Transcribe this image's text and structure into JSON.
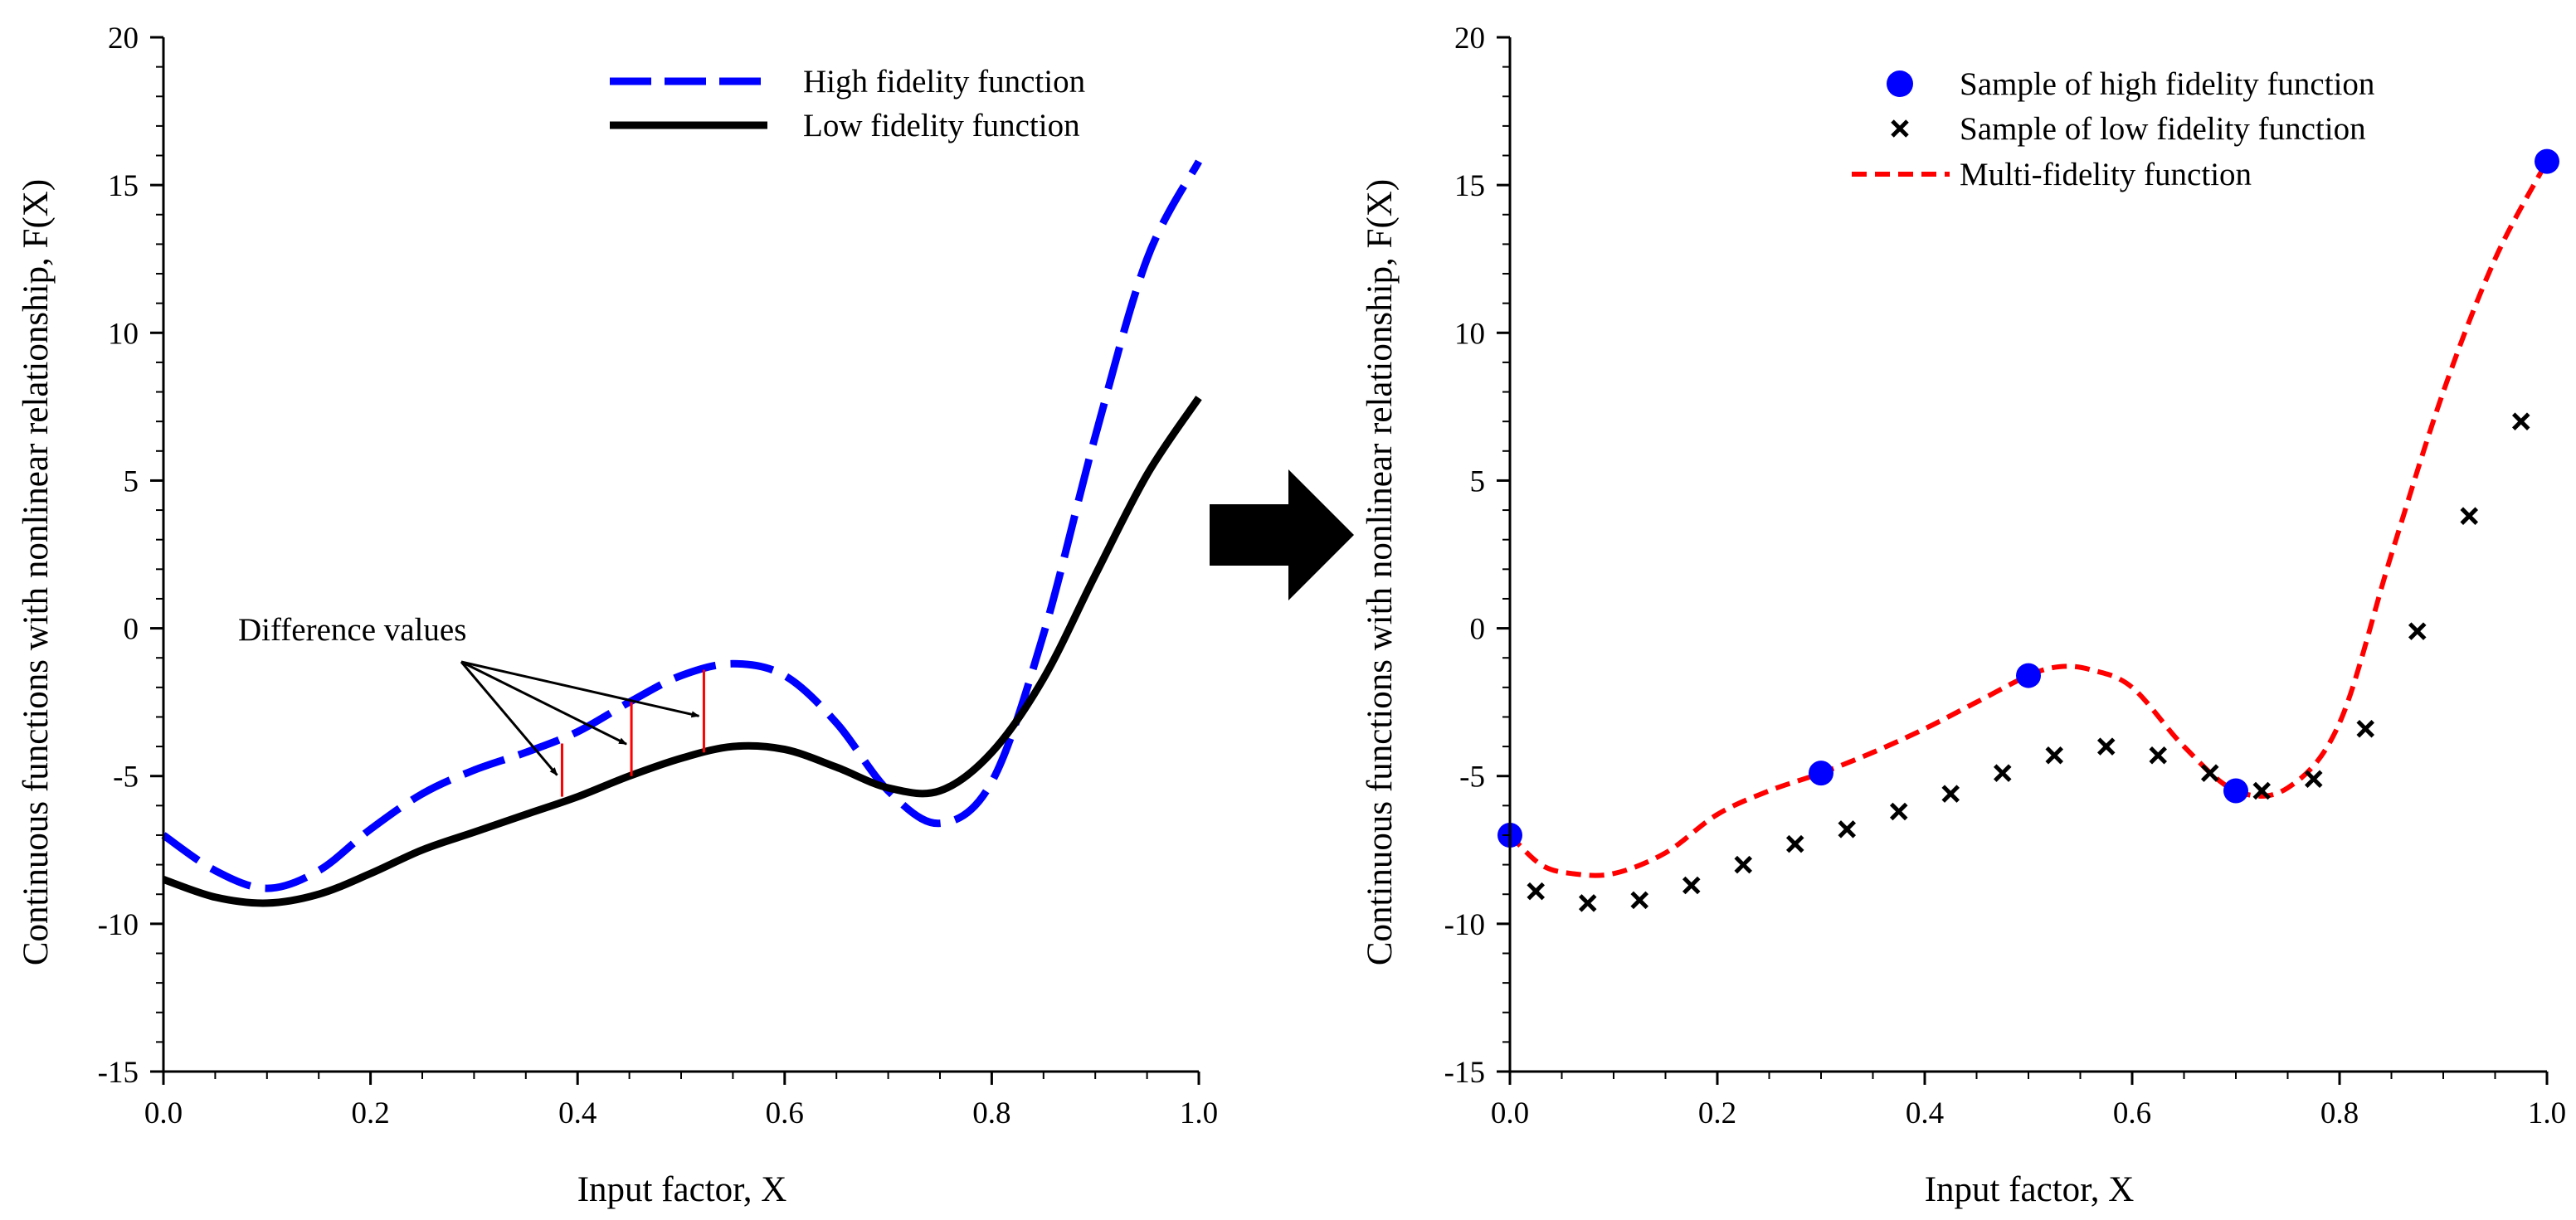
{
  "chart_data": [
    {
      "type": "line",
      "xlabel": "Input factor, X",
      "ylabel": "Continuous functions with nonlinear relationship, F(X)",
      "xlim": [
        0.0,
        1.0
      ],
      "ylim": [
        -15,
        20
      ],
      "xticks": [
        "0.0",
        "0.2",
        "0.4",
        "0.6",
        "0.8",
        "1.0"
      ],
      "yticks": [
        "-15",
        "-10",
        "-5",
        "0",
        "5",
        "10",
        "15",
        "20"
      ],
      "legend_position": "top-right",
      "series": [
        {
          "name": "High fidelity function",
          "style": "dashed",
          "color": "#0000ff",
          "x": [
            0.0,
            0.05,
            0.1,
            0.15,
            0.2,
            0.25,
            0.3,
            0.35,
            0.4,
            0.45,
            0.5,
            0.55,
            0.6,
            0.65,
            0.7,
            0.75,
            0.8,
            0.85,
            0.9,
            0.95,
            1.0
          ],
          "y": [
            -7.0,
            -8.2,
            -8.8,
            -8.2,
            -6.8,
            -5.6,
            -4.8,
            -4.2,
            -3.5,
            -2.5,
            -1.6,
            -1.2,
            -1.6,
            -3.2,
            -5.5,
            -6.6,
            -5.2,
            -0.2,
            6.5,
            12.5,
            15.8
          ]
        },
        {
          "name": "Low fidelity function",
          "style": "solid",
          "color": "#000000",
          "x": [
            0.0,
            0.05,
            0.1,
            0.15,
            0.2,
            0.25,
            0.3,
            0.35,
            0.4,
            0.45,
            0.5,
            0.55,
            0.6,
            0.65,
            0.7,
            0.75,
            0.8,
            0.85,
            0.9,
            0.95,
            1.0
          ],
          "y": [
            -8.5,
            -9.1,
            -9.3,
            -9.0,
            -8.3,
            -7.5,
            -6.9,
            -6.3,
            -5.7,
            -5.0,
            -4.4,
            -4.0,
            -4.1,
            -4.7,
            -5.4,
            -5.5,
            -4.2,
            -1.7,
            1.8,
            5.2,
            7.8
          ]
        }
      ],
      "annotations": [
        {
          "text": "Difference values",
          "arrow_targets_x": [
            0.385,
            0.452,
            0.522
          ]
        }
      ],
      "difference_markers": [
        {
          "x": 0.385,
          "y_low": -5.7,
          "y_high": -3.9
        },
        {
          "x": 0.452,
          "y_low": -5.0,
          "y_high": -2.5
        },
        {
          "x": 0.522,
          "y_low": -4.2,
          "y_high": -1.4
        }
      ]
    },
    {
      "type": "scatter",
      "xlabel": "Input factor, X",
      "ylabel": "Continuous functions with nonlinear relationship, F(X)",
      "xlim": [
        0.0,
        1.0
      ],
      "ylim": [
        -15,
        20
      ],
      "xticks": [
        "0.0",
        "0.2",
        "0.4",
        "0.6",
        "0.8",
        "1.0"
      ],
      "yticks": [
        "-15",
        "-10",
        "-5",
        "0",
        "5",
        "10",
        "15",
        "20"
      ],
      "legend_position": "top-right",
      "series": [
        {
          "name": "Sample of high fidelity function",
          "marker": "circle",
          "color": "#0000ff",
          "x": [
            0.0,
            0.3,
            0.5,
            0.7,
            1.0
          ],
          "y": [
            -7.0,
            -4.9,
            -1.6,
            -5.5,
            15.8
          ]
        },
        {
          "name": "Sample of low fidelity function",
          "marker": "x",
          "color": "#000000",
          "x": [
            0.025,
            0.075,
            0.125,
            0.175,
            0.225,
            0.275,
            0.325,
            0.375,
            0.425,
            0.475,
            0.525,
            0.575,
            0.625,
            0.675,
            0.725,
            0.775,
            0.825,
            0.875,
            0.925,
            0.975
          ],
          "y": [
            -8.9,
            -9.3,
            -9.2,
            -8.7,
            -8.0,
            -7.3,
            -6.8,
            -6.2,
            -5.6,
            -4.9,
            -4.3,
            -4.0,
            -4.3,
            -4.9,
            -5.5,
            -5.1,
            -3.4,
            -0.1,
            3.8,
            7.0
          ]
        },
        {
          "name": "Multi-fidelity function",
          "style": "dashed",
          "color": "#ff0000",
          "x": [
            0.0,
            0.03,
            0.06,
            0.1,
            0.15,
            0.2,
            0.25,
            0.3,
            0.35,
            0.4,
            0.45,
            0.5,
            0.53,
            0.56,
            0.6,
            0.65,
            0.7,
            0.75,
            0.8,
            0.85,
            0.9,
            0.95,
            1.0
          ],
          "y": [
            -7.0,
            -8.0,
            -8.3,
            -8.3,
            -7.6,
            -6.3,
            -5.5,
            -4.9,
            -4.2,
            -3.4,
            -2.5,
            -1.6,
            -1.3,
            -1.4,
            -2.0,
            -4.0,
            -5.5,
            -5.4,
            -3.2,
            2.5,
            8.0,
            12.5,
            15.8
          ]
        }
      ]
    }
  ],
  "arrow_glyph": "right-arrow"
}
